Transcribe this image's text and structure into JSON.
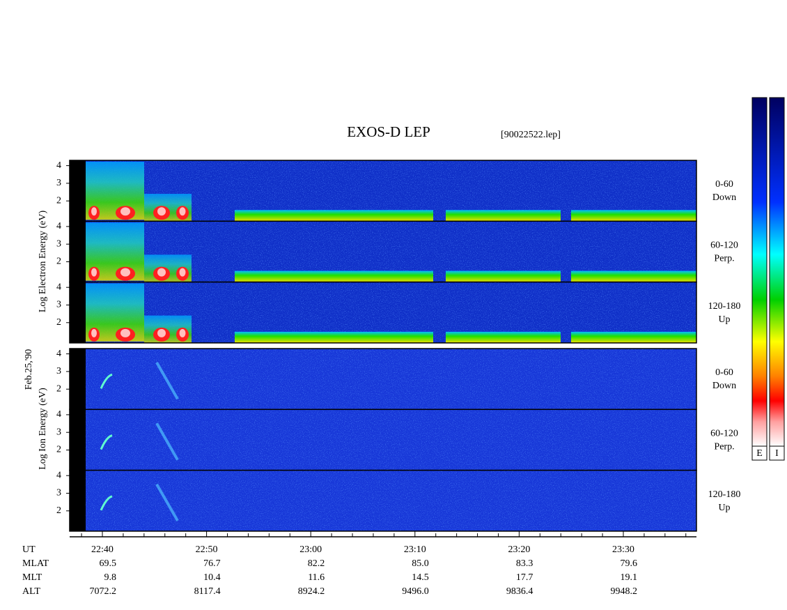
{
  "title": "EXOS-D LEP",
  "file": "[90022522.lep]",
  "date": "Feb.25,'90",
  "electron": {
    "axis_label": "Log Electron Energy (eV)",
    "panels": [
      {
        "range": "0-60",
        "direction": "Down"
      },
      {
        "range": "60-120",
        "direction": "Perp."
      },
      {
        "range": "120-180",
        "direction": "Up"
      }
    ]
  },
  "ion": {
    "axis_label": "Log Ion Energy (eV)",
    "panels": [
      {
        "range": "0-60",
        "direction": "Down"
      },
      {
        "range": "60-120",
        "direction": "Perp."
      },
      {
        "range": "120-180",
        "direction": "Up"
      }
    ]
  },
  "energy_ticks": [
    2,
    3,
    4
  ],
  "energy_lim": [
    0.85,
    4.3
  ],
  "colorbars": [
    "E",
    "I"
  ],
  "time_axis": {
    "row_labels": [
      "UT",
      "MLAT",
      "MLT",
      "ALT"
    ],
    "columns": [
      [
        "22:40",
        "69.5",
        "9.8",
        "7072.2"
      ],
      [
        "22:50",
        "76.7",
        "10.4",
        "8117.4"
      ],
      [
        "23:00",
        "82.2",
        "11.6",
        "8924.2"
      ],
      [
        "23:10",
        "85.0",
        "14.5",
        "9496.0"
      ],
      [
        "23:20",
        "83.3",
        "17.7",
        "9836.4"
      ],
      [
        "23:30",
        "79.6",
        "19.1",
        "9948.2"
      ]
    ]
  }
}
